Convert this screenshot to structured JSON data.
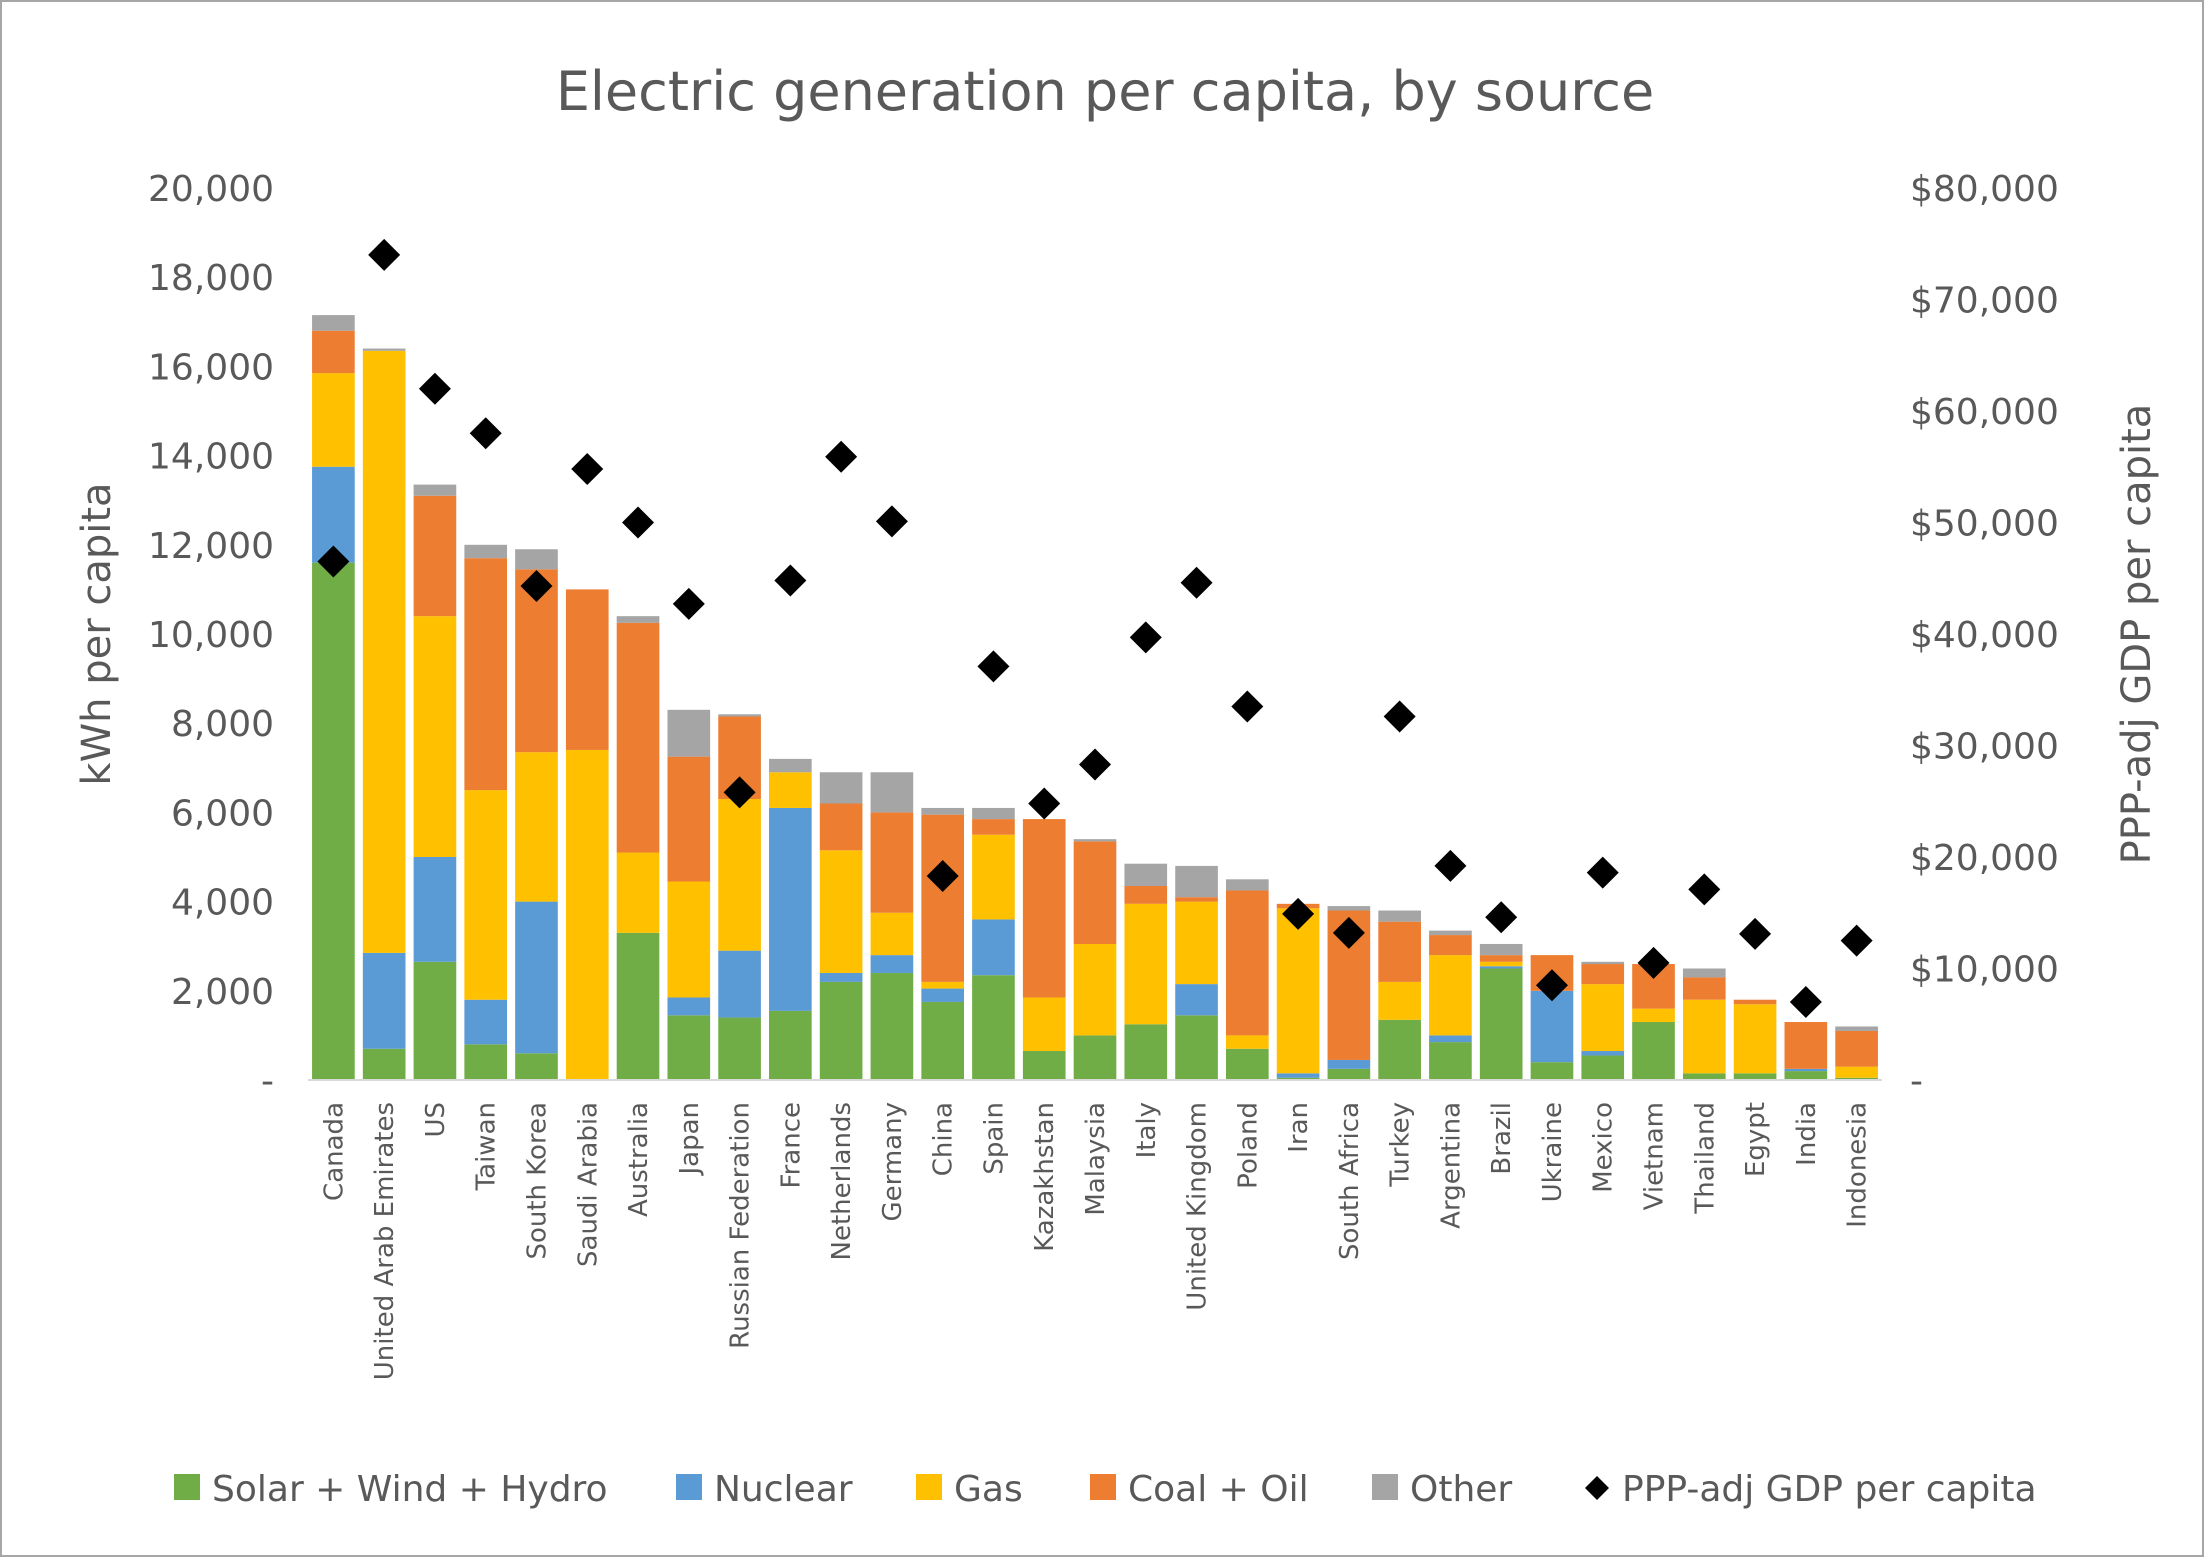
{
  "chart_data": {
    "type": "bar",
    "stacked": true,
    "title": "Electric generation per capita, by source",
    "ylabel": "kWh per capita",
    "y2label": "PPP-adj GDP per capita",
    "ylim": [
      0,
      20000
    ],
    "y2lim": [
      0,
      80000
    ],
    "yticks": [
      {
        "value": 0,
        "label": "-"
      },
      {
        "value": 2000,
        "label": "2,000"
      },
      {
        "value": 4000,
        "label": "4,000"
      },
      {
        "value": 6000,
        "label": "6,000"
      },
      {
        "value": 8000,
        "label": "8,000"
      },
      {
        "value": 10000,
        "label": "10,000"
      },
      {
        "value": 12000,
        "label": "12,000"
      },
      {
        "value": 14000,
        "label": "14,000"
      },
      {
        "value": 16000,
        "label": "16,000"
      },
      {
        "value": 18000,
        "label": "18,000"
      },
      {
        "value": 20000,
        "label": "20,000"
      }
    ],
    "y2ticks": [
      {
        "value": 0,
        "label": "-"
      },
      {
        "value": 10000,
        "label": "$10,000"
      },
      {
        "value": 20000,
        "label": "$20,000"
      },
      {
        "value": 30000,
        "label": "$30,000"
      },
      {
        "value": 40000,
        "label": "$40,000"
      },
      {
        "value": 50000,
        "label": "$50,000"
      },
      {
        "value": 60000,
        "label": "$60,000"
      },
      {
        "value": 70000,
        "label": "$70,000"
      },
      {
        "value": 80000,
        "label": "$80,000"
      }
    ],
    "grid": false,
    "legend_position": "bottom",
    "categories": [
      "Canada",
      "United Arab Emirates",
      "US",
      "Taiwan",
      "South Korea",
      "Saudi Arabia",
      "Australia",
      "Japan",
      "Russian Federation",
      "France",
      "Netherlands",
      "Germany",
      "China",
      "Spain",
      "Kazakhstan",
      "Malaysia",
      "Italy",
      "United Kingdom",
      "Poland",
      "Iran",
      "South Africa",
      "Turkey",
      "Argentina",
      "Brazil",
      "Ukraine",
      "Mexico",
      "Vietnam",
      "Thailand",
      "Egypt",
      "India",
      "Indonesia"
    ],
    "series": [
      {
        "name": "Solar + Wind + Hydro",
        "color": "#70ad47",
        "values": [
          11600,
          700,
          2650,
          800,
          600,
          0,
          3300,
          1450,
          1400,
          1550,
          2200,
          2400,
          1750,
          2350,
          650,
          1000,
          1250,
          1450,
          700,
          50,
          250,
          1350,
          850,
          2500,
          400,
          550,
          1300,
          150,
          150,
          200,
          50
        ]
      },
      {
        "name": "Nuclear",
        "color": "#5b9bd5",
        "values": [
          2150,
          2150,
          2350,
          1000,
          3400,
          0,
          0,
          400,
          1500,
          4550,
          200,
          400,
          300,
          1250,
          0,
          0,
          0,
          700,
          0,
          100,
          200,
          0,
          150,
          50,
          1600,
          100,
          0,
          0,
          0,
          50,
          0
        ]
      },
      {
        "name": "Gas",
        "color": "#ffc000",
        "values": [
          2100,
          13500,
          5400,
          4700,
          3350,
          7400,
          1800,
          2600,
          3400,
          800,
          2750,
          950,
          150,
          1900,
          1200,
          2050,
          2700,
          1850,
          300,
          3700,
          0,
          850,
          1800,
          100,
          0,
          1500,
          300,
          1650,
          1550,
          0,
          250
        ]
      },
      {
        "name": "Coal + Oil",
        "color": "#ed7d31",
        "values": [
          950,
          0,
          2700,
          5200,
          4100,
          3600,
          5150,
          2800,
          1850,
          0,
          1050,
          2250,
          3750,
          350,
          4000,
          2300,
          400,
          100,
          3250,
          100,
          3350,
          1350,
          450,
          150,
          800,
          450,
          1000,
          500,
          100,
          1050,
          800
        ]
      },
      {
        "name": "Other",
        "color": "#a5a5a5",
        "values": [
          350,
          50,
          250,
          300,
          450,
          0,
          150,
          1050,
          50,
          300,
          700,
          900,
          150,
          250,
          0,
          50,
          500,
          700,
          250,
          0,
          100,
          250,
          100,
          250,
          0,
          50,
          0,
          200,
          0,
          0,
          100
        ]
      },
      {
        "name": "PPP-adj GDP per capita",
        "color": "#000000",
        "type": "scatter",
        "axis": "right",
        "values": [
          46500,
          74000,
          62000,
          58000,
          44300,
          54800,
          50000,
          42700,
          25800,
          44800,
          55900,
          50100,
          18300,
          37100,
          24800,
          28300,
          39700,
          44600,
          33500,
          14900,
          13200,
          32600,
          19200,
          14600,
          8500,
          18600,
          10500,
          17100,
          13100,
          7000,
          12500
        ]
      }
    ]
  }
}
